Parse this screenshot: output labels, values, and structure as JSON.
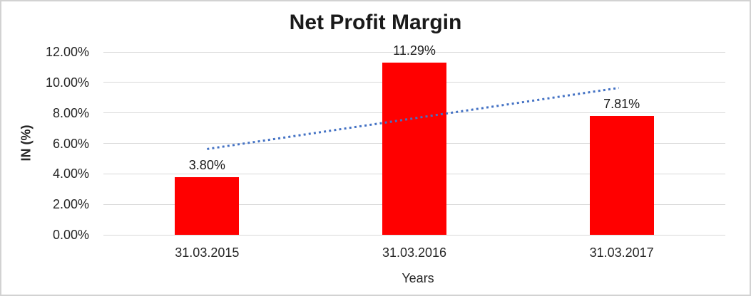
{
  "chart_data": {
    "type": "bar",
    "title": "Net Profit Margin",
    "xlabel": "Years",
    "ylabel": "IN (%)",
    "categories": [
      "31.03.2015",
      "31.03.2016",
      "31.03.2017"
    ],
    "series": [
      {
        "name": "Net Profit Margin",
        "values": [
          3.8,
          11.29,
          7.81
        ]
      }
    ],
    "data_labels": [
      "3.80%",
      "11.29%",
      "7.81%"
    ],
    "ylim": [
      0,
      12
    ],
    "ytick_step": 2,
    "ytick_labels": [
      "0.00%",
      "2.00%",
      "4.00%",
      "6.00%",
      "8.00%",
      "10.00%",
      "12.00%"
    ],
    "grid": true,
    "legend_position": "none",
    "trendline": {
      "type": "linear",
      "style": "dotted",
      "start_value": 5.63,
      "end_value": 9.64
    }
  },
  "colors": {
    "bar": "#ff0000",
    "trendline": "#4472c4",
    "gridline": "#d9d9d9",
    "text": "#262626",
    "title_text": "#1a1a1a",
    "frame_border": "#d2d2d2"
  }
}
